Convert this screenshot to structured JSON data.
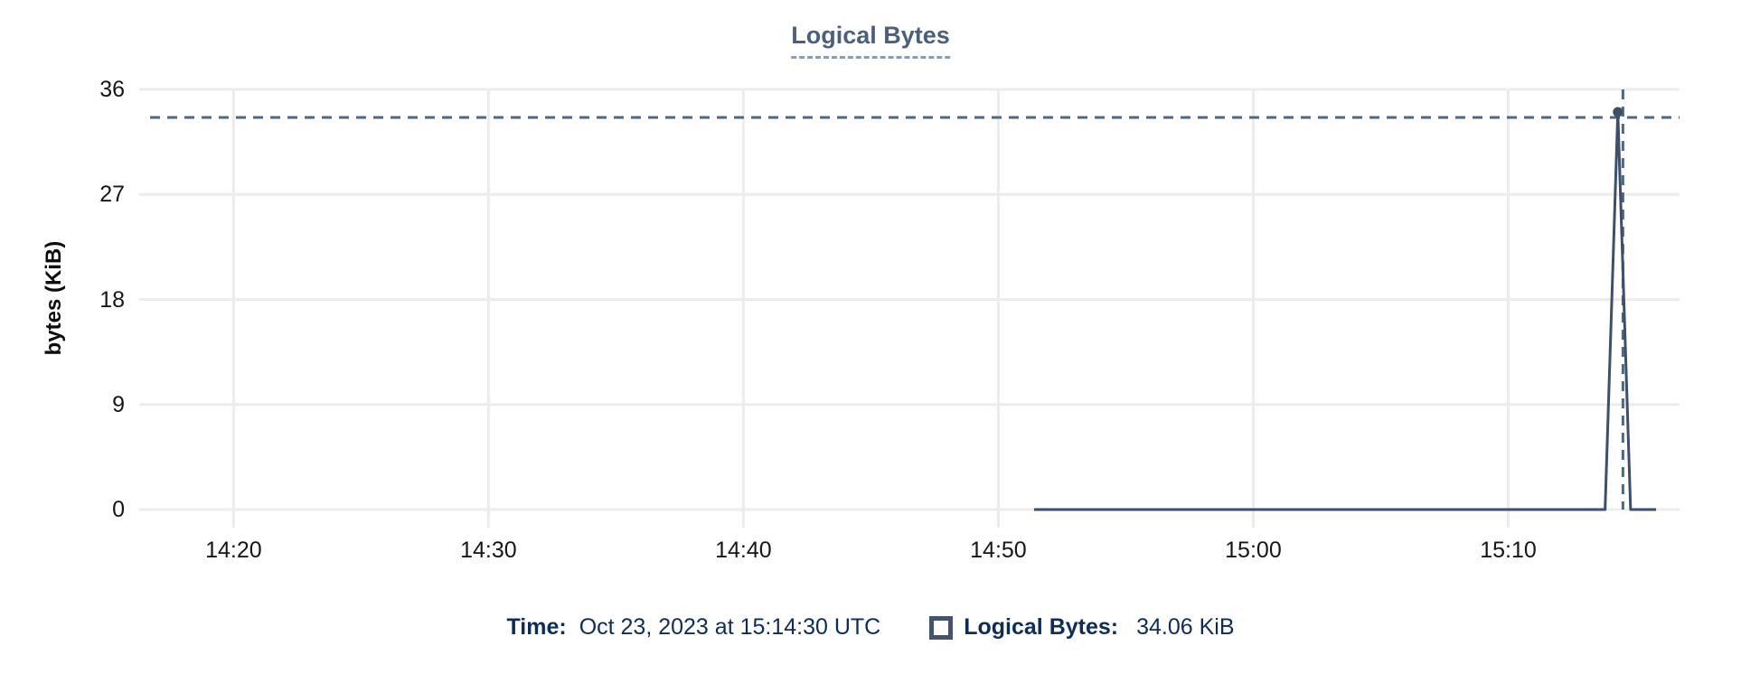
{
  "chart_data": {
    "type": "line",
    "title": "Logical Bytes",
    "xlabel": "",
    "ylabel": "bytes (KiB)",
    "x_unit": "minutes after 14:00 UTC, Oct 23 2023",
    "x_domain": [
      16.3,
      76.72
    ],
    "y_domain": [
      0,
      36
    ],
    "grid": true,
    "x_ticks": [
      {
        "x": 20,
        "label": "14:20"
      },
      {
        "x": 30,
        "label": "14:30"
      },
      {
        "x": 40,
        "label": "14:40"
      },
      {
        "x": 50,
        "label": "14:50"
      },
      {
        "x": 60,
        "label": "15:00"
      },
      {
        "x": 70,
        "label": "15:10"
      }
    ],
    "y_ticks": [
      {
        "y": 0,
        "label": "0"
      },
      {
        "y": 9,
        "label": "9"
      },
      {
        "y": 18,
        "label": "18"
      },
      {
        "y": 27,
        "label": "27"
      },
      {
        "y": 36,
        "label": "36"
      }
    ],
    "series": [
      {
        "name": "Logical Bytes",
        "color": "#3d4f6b",
        "line_width": 3,
        "points": [
          [
            51.4,
            0
          ],
          [
            73.8,
            0
          ],
          [
            74.3,
            34.06
          ],
          [
            74.8,
            0
          ],
          [
            75.8,
            0
          ]
        ]
      }
    ],
    "crosshair": {
      "x": 74.5,
      "y": 34.06,
      "time_label": "15:14:30",
      "color": "#50677f"
    },
    "marker": {
      "x": 74.3,
      "y": 34.06,
      "color": "#3d4f6b",
      "radius": 5.5
    },
    "legend_position": "bottom-center"
  },
  "legend": {
    "time_label": "Time:",
    "time_value": "Oct 23, 2023 at 15:14:30 UTC",
    "series_label": "Logical Bytes:",
    "series_value": "34.06 KiB"
  },
  "colors": {
    "background": "#ffffff",
    "grid": "#ececec",
    "tick_text": "#161616",
    "title_text": "#4c5f7d",
    "title_underline": "#8c9bb0",
    "legend_text": "#0e2d56",
    "swatch_border": "#44546e",
    "series_line": "#3d4f6b",
    "crosshair": "#50677f"
  }
}
